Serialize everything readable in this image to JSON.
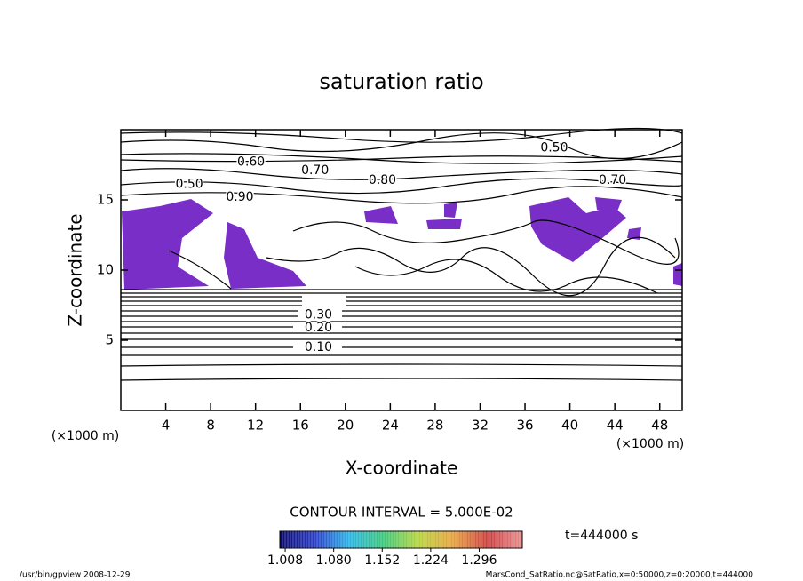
{
  "chart_data": {
    "type": "contour",
    "title": "saturation ratio",
    "x_label": "X-coordinate",
    "y_label": "Z-coordinate",
    "x_unit": "(×1000 m)",
    "y_unit": "(×1000 m)",
    "xlim": [
      0,
      50
    ],
    "ylim": [
      0,
      20
    ],
    "xticks": [
      4,
      8,
      12,
      16,
      20,
      24,
      28,
      32,
      36,
      40,
      44,
      48
    ],
    "yticks": [
      5,
      10,
      15
    ],
    "contour_interval": "CONTOUR INTERVAL = 5.000E-02",
    "time_label": "t=444000 s",
    "contour_labels": [
      {
        "value": 0.5,
        "label": "0.50",
        "x": 38.6,
        "z": 18.7
      },
      {
        "value": 0.6,
        "label": "0.60",
        "x": 11.6,
        "z": 17.7
      },
      {
        "value": 0.7,
        "label": "0.70",
        "x": 17.3,
        "z": 17.1
      },
      {
        "value": 0.5,
        "label": "0.50",
        "x": 6.1,
        "z": 16.1
      },
      {
        "value": 0.8,
        "label": "0.80",
        "x": 23.3,
        "z": 16.4
      },
      {
        "value": 0.7,
        "label": "0.70",
        "x": 43.8,
        "z": 16.4
      },
      {
        "value": 0.9,
        "label": "0.90",
        "x": 10.6,
        "z": 15.2
      },
      {
        "value": 0.3,
        "label": "0.30",
        "x": 17.6,
        "z": 6.8
      },
      {
        "value": 0.2,
        "label": "0.20",
        "x": 17.6,
        "z": 5.9
      },
      {
        "value": 0.1,
        "label": "0.10",
        "x": 17.6,
        "z": 4.5
      }
    ],
    "colorbar": {
      "lim": [
        1.0,
        1.36
      ],
      "colors": [
        "#0a0a6e",
        "#2a3cc8",
        "#2ab4e6",
        "#3cc878",
        "#b4d23c",
        "#e6a03c",
        "#c83c3c",
        "#e68c8c"
      ],
      "ticks": [
        {
          "value": 1.008,
          "label": "1.008"
        },
        {
          "value": 1.08,
          "label": "1.080"
        },
        {
          "value": 1.152,
          "label": "1.152"
        },
        {
          "value": 1.224,
          "label": "1.224"
        },
        {
          "value": 1.296,
          "label": "1.296"
        }
      ]
    },
    "footer_left": "/usr/bin/gpview  2008-12-29",
    "footer_right": "MarsCond_SatRatio.nc@SatRatio,x=0:50000,z=0:20000,t=444000"
  }
}
